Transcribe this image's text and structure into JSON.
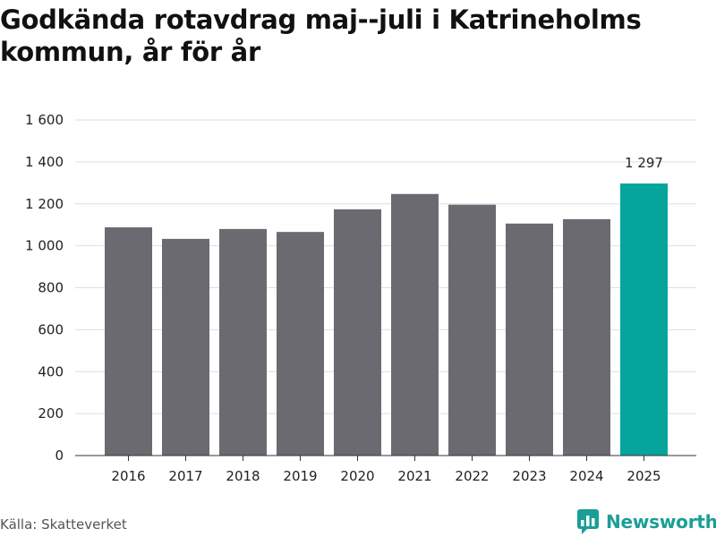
{
  "title": "Godkända rotavdrag maj--juli i Katrineholms kommun, år för år",
  "source": "Källa: Skatteverket",
  "brand": "Newsworthy",
  "colors": {
    "bar": "#6b6a70",
    "highlight": "#06a59c",
    "grid": "#dedede",
    "axis": "#333333",
    "brand": "#1a9e96"
  },
  "chart_data": {
    "type": "bar",
    "categories": [
      "2016",
      "2017",
      "2018",
      "2019",
      "2020",
      "2021",
      "2022",
      "2023",
      "2024",
      "2025"
    ],
    "values": [
      1088,
      1033,
      1080,
      1066,
      1174,
      1247,
      1196,
      1106,
      1127,
      1297
    ],
    "highlight_index": 9,
    "data_labels": [
      {
        "index": 9,
        "text": "1 297"
      }
    ],
    "ylim": [
      0,
      1600
    ],
    "yticks": [
      0,
      200,
      400,
      600,
      800,
      1000,
      1200,
      1400,
      1600
    ],
    "ytick_labels": [
      "0",
      "200",
      "400",
      "600",
      "800",
      "1 000",
      "1 200",
      "1 400",
      "1 600"
    ],
    "grid": true,
    "title": "Godkända rotavdrag maj--juli i Katrineholms kommun, år för år",
    "xlabel": "",
    "ylabel": ""
  }
}
